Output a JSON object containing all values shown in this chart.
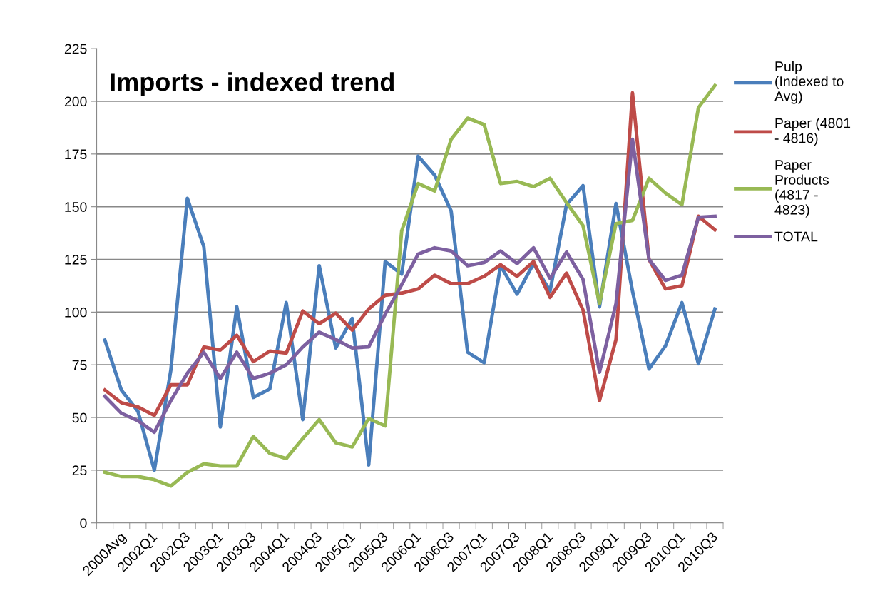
{
  "chart_data": {
    "type": "line",
    "title": "Imports - indexed trend",
    "categories": [
      "2000Avg",
      null,
      "2002Q1",
      null,
      "2002Q3",
      null,
      "2003Q1",
      null,
      "2003Q3",
      null,
      "2004Q1",
      null,
      "2004Q3",
      null,
      "2005Q1",
      null,
      "2005Q3",
      null,
      "2006Q1",
      null,
      "2006Q3",
      null,
      "2007Q1",
      null,
      "2007Q3",
      null,
      "2008Q1",
      null,
      "2008Q3",
      null,
      "2009Q1",
      null,
      "2009Q3",
      null,
      "2010Q1",
      null,
      "2010Q3",
      null
    ],
    "series": [
      {
        "name": "Pulp (Indexed to Avg)",
        "color": "#4a7ebb",
        "values": [
          86.7,
          63,
          53,
          25,
          72.6,
          154,
          131,
          45.5,
          102.5,
          59.5,
          63.5,
          104.5,
          49,
          122,
          83,
          97,
          27.5,
          124,
          118,
          174,
          165,
          148,
          81,
          76,
          122,
          108.5,
          123,
          110,
          151,
          160,
          102.5,
          151.5,
          110,
          73,
          84,
          104.5,
          75.5,
          101.5
        ]
      },
      {
        "name": "Paper (4801 - 4816)",
        "color": "#be4b48",
        "values": [
          63,
          57,
          55,
          51,
          65.5,
          65.5,
          83.5,
          82,
          89,
          76.5,
          81.5,
          80.5,
          100.5,
          94.5,
          99.5,
          91.5,
          101.5,
          108,
          109,
          111,
          117.5,
          113.5,
          113.5,
          117,
          122.5,
          117,
          124,
          107,
          118.5,
          101,
          58,
          87,
          204,
          125,
          111,
          112.5,
          145.5,
          139
        ]
      },
      {
        "name": "Paper Products (4817 - 4823)",
        "color": "#98b954",
        "values": [
          24,
          22,
          22,
          20.5,
          17.5,
          24,
          28,
          27,
          27,
          41,
          33,
          30.5,
          40,
          49,
          38,
          36,
          49.5,
          46,
          138.5,
          161,
          157.5,
          182,
          192,
          189,
          161,
          162,
          159.5,
          163.5,
          152,
          141,
          104,
          142,
          143.5,
          163.5,
          156.5,
          151,
          197,
          207.5
        ]
      },
      {
        "name": "TOTAL",
        "color": "#7d60a0",
        "values": [
          60,
          52,
          48.5,
          43,
          58,
          71,
          81,
          68.5,
          81,
          68.5,
          71,
          75,
          83.5,
          90.5,
          87,
          83,
          83.5,
          99,
          113,
          127.5,
          130.5,
          129,
          122,
          123.5,
          129,
          123,
          130.5,
          116,
          128.5,
          115.5,
          71.5,
          104,
          182,
          125,
          115,
          117.5,
          145,
          145.5
        ]
      }
    ],
    "ylim": [
      0,
      225
    ],
    "yticks": [
      0,
      25,
      50,
      75,
      100,
      125,
      150,
      175,
      200,
      225
    ],
    "grid": "y",
    "legend": "right",
    "marker": "none",
    "line_style": "solid"
  }
}
